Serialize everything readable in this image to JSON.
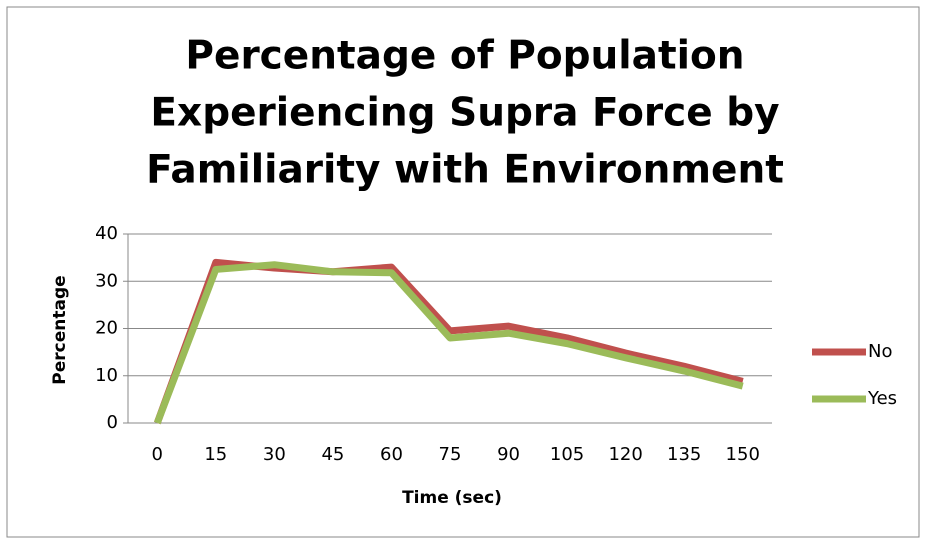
{
  "chart_data": {
    "type": "line",
    "title": [
      "Percentage of Population",
      "Experiencing Supra Force by",
      "Familiarity with Environment"
    ],
    "xlabel": "Time (sec)",
    "ylabel": "Percentage",
    "x": [
      0,
      15,
      30,
      45,
      60,
      75,
      90,
      105,
      120,
      135,
      150
    ],
    "xlim": [
      -7.5,
      157.5
    ],
    "xticks": [
      0,
      15,
      30,
      45,
      60,
      75,
      90,
      105,
      120,
      135,
      150
    ],
    "ylim": [
      0,
      40
    ],
    "yticks": [
      0,
      10,
      20,
      30,
      40
    ],
    "grid": true,
    "legend": "right",
    "series": [
      {
        "name": "No",
        "color": "#c0504d",
        "values": [
          0,
          34,
          32.8,
          32,
          33,
          19.5,
          20.5,
          18,
          14.8,
          12,
          8.8
        ]
      },
      {
        "name": "Yes",
        "color": "#9bbb59",
        "values": [
          0,
          32.5,
          33.5,
          32,
          31.8,
          18,
          19,
          16.8,
          13.8,
          11,
          7.8
        ]
      }
    ]
  }
}
